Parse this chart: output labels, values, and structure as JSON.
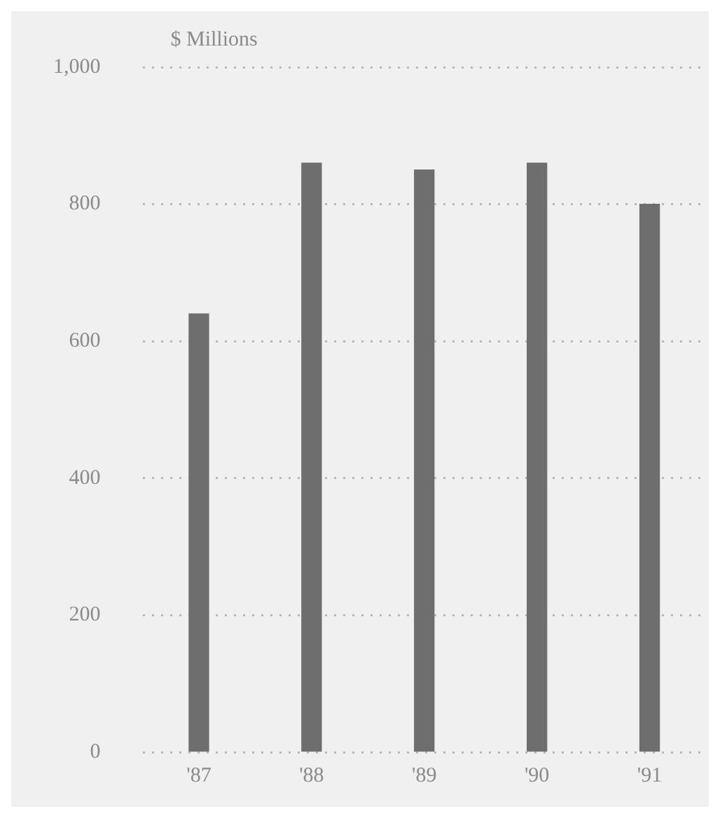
{
  "chart_data": {
    "type": "bar",
    "ylabel": "$ Millions",
    "categories": [
      "'87",
      "'88",
      "'89",
      "'90",
      "'91"
    ],
    "values": [
      640,
      860,
      850,
      860,
      800
    ],
    "color": "#6e6e6e",
    "ylim": [
      0,
      1000
    ],
    "yticks": [
      0,
      200,
      400,
      600,
      800,
      {
        "value": 1000,
        "label": "1,000"
      }
    ],
    "grid": "y"
  }
}
